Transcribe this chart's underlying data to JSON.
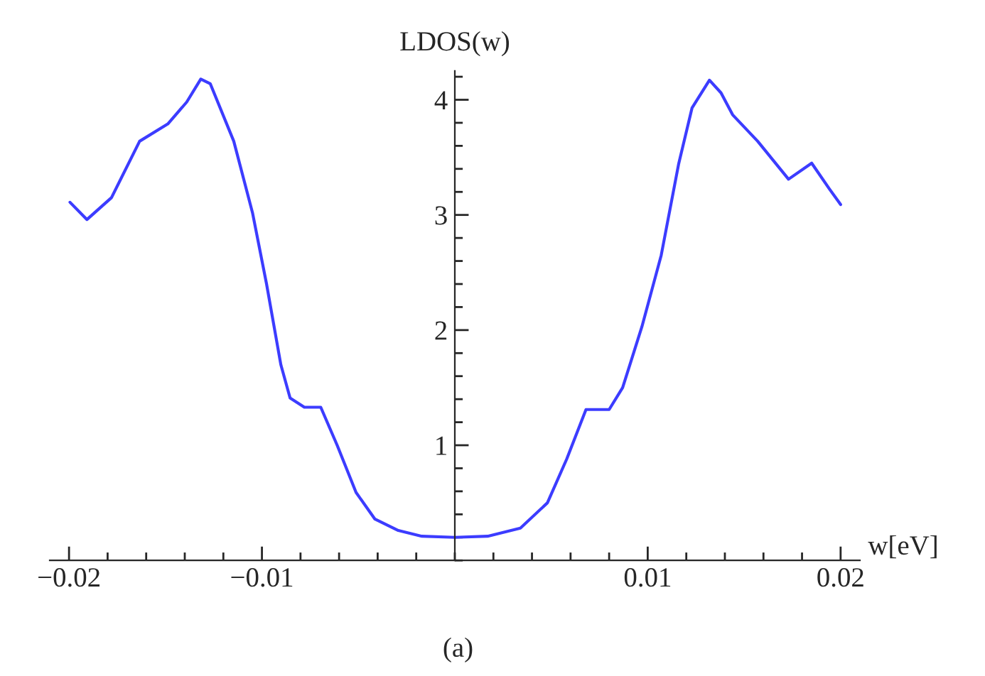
{
  "chart_data": {
    "type": "line",
    "xlabel": "w[eV]",
    "ylabel": "LDOS(w)",
    "annotations": [
      "(a)"
    ],
    "series": [
      {
        "color": "#3c3cff",
        "x": [
          -0.01995,
          -0.01907,
          -0.0178,
          -0.01634,
          -0.01488,
          -0.0139,
          -0.01317,
          -0.01268,
          -0.01146,
          -0.01049,
          -0.00976,
          -0.00902,
          -0.00854,
          -0.0078,
          -0.00695,
          -0.0061,
          -0.00512,
          -0.00415,
          -0.00293,
          -0.00171,
          0,
          0.0017,
          0.0034,
          0.0048,
          0.0058,
          0.0068,
          0.008,
          0.0087,
          0.0097,
          0.0107,
          0.0116,
          0.0123,
          0.0132,
          0.0138,
          0.0144,
          0.0157,
          0.0173,
          0.0185,
          0.0194,
          0.02
        ],
        "values": [
          3.11,
          2.96,
          3.15,
          3.64,
          3.79,
          3.98,
          4.18,
          4.14,
          3.64,
          3.02,
          2.4,
          1.7,
          1.41,
          1.33,
          1.33,
          1.0,
          0.59,
          0.36,
          0.26,
          0.21,
          0.2,
          0.21,
          0.28,
          0.5,
          0.88,
          1.31,
          1.31,
          1.5,
          2.03,
          2.65,
          3.44,
          3.93,
          4.17,
          4.06,
          3.87,
          3.64,
          3.31,
          3.45,
          3.23,
          3.09
        ]
      }
    ],
    "xlim": [
      -0.021,
      0.021
    ],
    "ylim": [
      0,
      4.25
    ],
    "xticks": [
      {
        "value": -0.02,
        "label": "−0.02"
      },
      {
        "value": -0.01,
        "label": "−0.01"
      },
      0.01,
      0.02
    ],
    "yticks": [
      1,
      2,
      3,
      4
    ],
    "grid": false,
    "legend": false,
    "marker": "none",
    "line_style": "solid"
  }
}
